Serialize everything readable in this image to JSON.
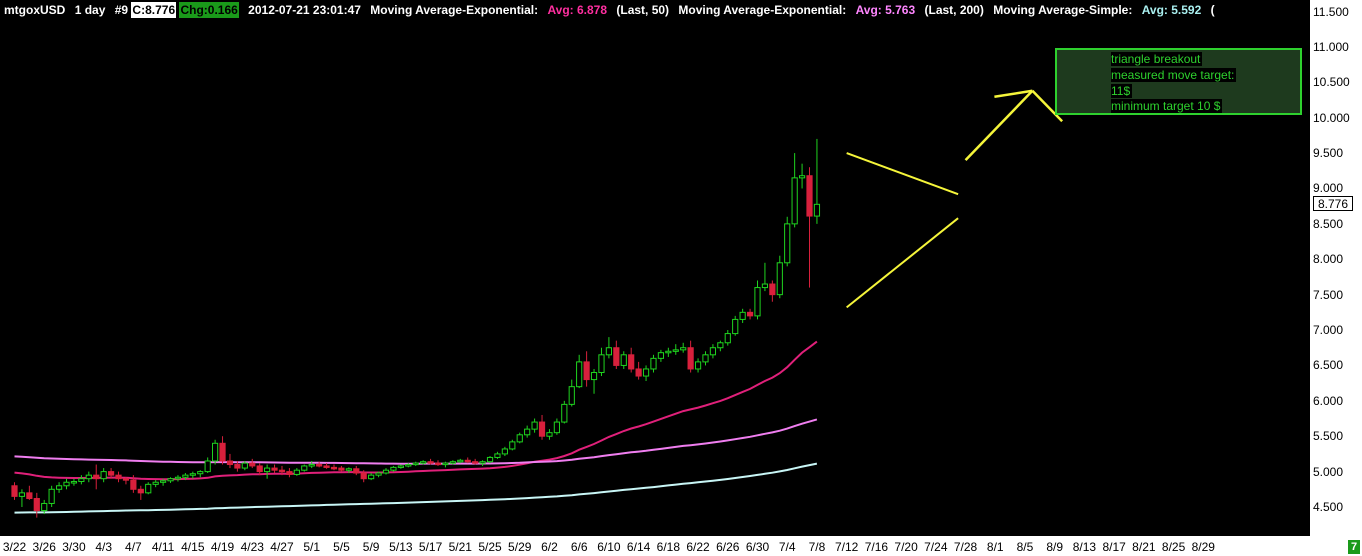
{
  "header": {
    "symbol": "mtgoxUSD",
    "period": "1 day",
    "bar_index": "#9",
    "close_text": "C:8.776",
    "change_text": "Chg:0.166",
    "timestamp": "2012-07-21 23:01:47",
    "indicators": [
      {
        "name": "Moving Average-Exponential:",
        "avg": "Avg: 6.878",
        "params": "(Last, 50)"
      },
      {
        "name": "Moving Average-Exponential:",
        "avg": "Avg: 5.763",
        "params": "(Last, 200)"
      },
      {
        "name": "Moving Average-Simple:",
        "avg": "Avg: 5.592",
        "params": "("
      }
    ]
  },
  "last_price_tag": "8.776",
  "corner_badge": "7",
  "annotation": {
    "lines": [
      "triangle breakout",
      "measured move target:",
      "11$",
      "minimum target 10 $"
    ]
  },
  "colors": {
    "background": "#000000",
    "up_candle": "#1fd41f",
    "down_candle": "#d8203c",
    "ema50": "#e0207a",
    "ema200": "#f07ef0",
    "sma": "#c8f6f6",
    "triangle": "#f5f53a",
    "note_border": "#2ed12e"
  },
  "chart_data": {
    "type": "candlestick",
    "x_start": "2012-03-22",
    "y_ticks": [
      "4.500",
      "5.000",
      "5.500",
      "6.000",
      "6.500",
      "7.000",
      "7.500",
      "8.000",
      "8.500",
      "9.000",
      "9.500",
      "10.000",
      "10.500",
      "11.000",
      "11.500"
    ],
    "ylim": [
      4.2,
      11.7
    ],
    "x_ticks": [
      "3/22",
      "3/26",
      "3/30",
      "4/3",
      "4/7",
      "4/11",
      "4/15",
      "4/19",
      "4/23",
      "4/27",
      "5/1",
      "5/5",
      "5/9",
      "5/13",
      "5/17",
      "5/21",
      "5/25",
      "5/29",
      "6/2",
      "6/6",
      "6/10",
      "6/14",
      "6/18",
      "6/22",
      "6/26",
      "6/30",
      "7/4",
      "7/8",
      "7/12",
      "7/16",
      "7/20",
      "7/24",
      "7/28",
      "8/1",
      "8/5",
      "8/9",
      "8/13",
      "8/17",
      "8/21",
      "8/25",
      "8/29"
    ],
    "candles_ohlc": [
      [
        4.8,
        4.85,
        4.6,
        4.65
      ],
      [
        4.65,
        4.75,
        4.5,
        4.7
      ],
      [
        4.7,
        4.8,
        4.6,
        4.62
      ],
      [
        4.62,
        4.7,
        4.35,
        4.45
      ],
      [
        4.45,
        4.6,
        4.4,
        4.55
      ],
      [
        4.55,
        4.8,
        4.5,
        4.75
      ],
      [
        4.75,
        4.85,
        4.7,
        4.8
      ],
      [
        4.8,
        4.9,
        4.75,
        4.85
      ],
      [
        4.85,
        4.9,
        4.8,
        4.86
      ],
      [
        4.86,
        4.95,
        4.82,
        4.9
      ],
      [
        4.9,
        5.0,
        4.85,
        4.95
      ],
      [
        4.95,
        5.1,
        4.75,
        4.9
      ],
      [
        4.9,
        5.05,
        4.85,
        5.0
      ],
      [
        5.0,
        5.05,
        4.9,
        4.95
      ],
      [
        4.95,
        5.0,
        4.85,
        4.9
      ],
      [
        4.9,
        4.92,
        4.82,
        4.88
      ],
      [
        4.88,
        4.95,
        4.7,
        4.75
      ],
      [
        4.75,
        4.8,
        4.6,
        4.7
      ],
      [
        4.7,
        4.85,
        4.68,
        4.82
      ],
      [
        4.82,
        4.88,
        4.78,
        4.85
      ],
      [
        4.85,
        4.9,
        4.8,
        4.87
      ],
      [
        4.87,
        4.92,
        4.84,
        4.9
      ],
      [
        4.9,
        4.95,
        4.86,
        4.92
      ],
      [
        4.92,
        4.98,
        4.88,
        4.95
      ],
      [
        4.95,
        5.0,
        4.9,
        4.97
      ],
      [
        4.97,
        5.02,
        4.92,
        5.0
      ],
      [
        5.0,
        5.2,
        4.98,
        5.15
      ],
      [
        5.15,
        5.45,
        5.1,
        5.4
      ],
      [
        5.4,
        5.5,
        5.1,
        5.15
      ],
      [
        5.15,
        5.25,
        5.05,
        5.1
      ],
      [
        5.1,
        5.15,
        5.0,
        5.05
      ],
      [
        5.05,
        5.15,
        5.02,
        5.12
      ],
      [
        5.12,
        5.18,
        5.05,
        5.08
      ],
      [
        5.08,
        5.12,
        4.95,
        5.0
      ],
      [
        5.0,
        5.1,
        4.9,
        5.05
      ],
      [
        5.05,
        5.1,
        4.98,
        5.02
      ],
      [
        5.02,
        5.08,
        4.95,
        5.0
      ],
      [
        5.0,
        5.05,
        4.92,
        4.96
      ],
      [
        4.96,
        5.05,
        4.94,
        5.02
      ],
      [
        5.02,
        5.1,
        5.0,
        5.08
      ],
      [
        5.08,
        5.15,
        5.05,
        5.1
      ],
      [
        5.1,
        5.14,
        5.06,
        5.08
      ],
      [
        5.08,
        5.12,
        5.04,
        5.06
      ],
      [
        5.06,
        5.1,
        5.02,
        5.05
      ],
      [
        5.05,
        5.08,
        5.0,
        5.02
      ],
      [
        5.02,
        5.06,
        4.98,
        5.04
      ],
      [
        5.04,
        5.08,
        4.95,
        4.98
      ],
      [
        4.98,
        5.02,
        4.85,
        4.9
      ],
      [
        4.9,
        4.98,
        4.88,
        4.95
      ],
      [
        4.95,
        5.0,
        4.92,
        4.98
      ],
      [
        4.98,
        5.05,
        4.96,
        5.02
      ],
      [
        5.02,
        5.08,
        5.0,
        5.06
      ],
      [
        5.06,
        5.1,
        5.04,
        5.08
      ],
      [
        5.08,
        5.12,
        5.06,
        5.1
      ],
      [
        5.1,
        5.14,
        5.08,
        5.12
      ],
      [
        5.12,
        5.16,
        5.1,
        5.14
      ],
      [
        5.14,
        5.18,
        5.1,
        5.12
      ],
      [
        5.12,
        5.16,
        5.08,
        5.1
      ],
      [
        5.1,
        5.14,
        5.06,
        5.12
      ],
      [
        5.12,
        5.16,
        5.1,
        5.14
      ],
      [
        5.14,
        5.18,
        5.12,
        5.16
      ],
      [
        5.16,
        5.2,
        5.12,
        5.14
      ],
      [
        5.14,
        5.18,
        5.1,
        5.12
      ],
      [
        5.12,
        5.16,
        5.08,
        5.14
      ],
      [
        5.14,
        5.22,
        5.12,
        5.2
      ],
      [
        5.2,
        5.28,
        5.18,
        5.25
      ],
      [
        5.25,
        5.35,
        5.22,
        5.32
      ],
      [
        5.32,
        5.45,
        5.3,
        5.42
      ],
      [
        5.42,
        5.55,
        5.4,
        5.52
      ],
      [
        5.52,
        5.65,
        5.48,
        5.6
      ],
      [
        5.6,
        5.75,
        5.55,
        5.7
      ],
      [
        5.7,
        5.8,
        5.45,
        5.5
      ],
      [
        5.5,
        5.6,
        5.45,
        5.55
      ],
      [
        5.55,
        5.75,
        5.52,
        5.7
      ],
      [
        5.7,
        6.0,
        5.68,
        5.95
      ],
      [
        5.95,
        6.3,
        5.92,
        6.2
      ],
      [
        6.2,
        6.65,
        6.18,
        6.55
      ],
      [
        6.55,
        6.7,
        6.2,
        6.3
      ],
      [
        6.3,
        6.45,
        6.1,
        6.4
      ],
      [
        6.4,
        6.75,
        6.35,
        6.65
      ],
      [
        6.65,
        6.9,
        6.6,
        6.75
      ],
      [
        6.75,
        6.85,
        6.45,
        6.5
      ],
      [
        6.5,
        6.7,
        6.45,
        6.65
      ],
      [
        6.65,
        6.75,
        6.4,
        6.45
      ],
      [
        6.45,
        6.55,
        6.3,
        6.35
      ],
      [
        6.35,
        6.5,
        6.28,
        6.45
      ],
      [
        6.45,
        6.65,
        6.4,
        6.6
      ],
      [
        6.6,
        6.72,
        6.55,
        6.68
      ],
      [
        6.68,
        6.75,
        6.62,
        6.7
      ],
      [
        6.7,
        6.8,
        6.65,
        6.72
      ],
      [
        6.72,
        6.82,
        6.68,
        6.75
      ],
      [
        6.75,
        6.85,
        6.4,
        6.45
      ],
      [
        6.45,
        6.6,
        6.4,
        6.55
      ],
      [
        6.55,
        6.7,
        6.5,
        6.65
      ],
      [
        6.65,
        6.8,
        6.6,
        6.75
      ],
      [
        6.75,
        6.85,
        6.7,
        6.82
      ],
      [
        6.82,
        7.0,
        6.78,
        6.95
      ],
      [
        6.95,
        7.2,
        6.92,
        7.15
      ],
      [
        7.15,
        7.3,
        7.1,
        7.25
      ],
      [
        7.25,
        7.3,
        7.15,
        7.2
      ],
      [
        7.2,
        7.7,
        7.15,
        7.6
      ],
      [
        7.6,
        7.95,
        7.55,
        7.65
      ],
      [
        7.65,
        7.7,
        7.4,
        7.5
      ],
      [
        7.5,
        8.05,
        7.45,
        7.95
      ],
      [
        7.95,
        8.6,
        7.9,
        8.5
      ],
      [
        8.5,
        9.5,
        8.45,
        9.15
      ],
      [
        9.15,
        9.35,
        9.0,
        9.18
      ],
      [
        9.18,
        9.3,
        7.6,
        8.61
      ],
      [
        8.61,
        9.7,
        8.5,
        8.776
      ]
    ],
    "series": [
      {
        "name": "Moving Average-Exponential (Last, 50)"
      },
      {
        "name": "Moving Average-Exponential (Last, 200)"
      },
      {
        "name": "Moving Average-Simple"
      }
    ],
    "triangle": {
      "upper": [
        [
          112,
          9.5
        ],
        [
          127,
          8.92
        ]
      ],
      "lower": [
        [
          112,
          7.32
        ],
        [
          127,
          8.58
        ]
      ],
      "arrow": [
        [
          128,
          9.4
        ],
        [
          137,
          10.38
        ]
      ],
      "arrow_tail": [
        [
          141,
          9.95
        ]
      ]
    }
  }
}
